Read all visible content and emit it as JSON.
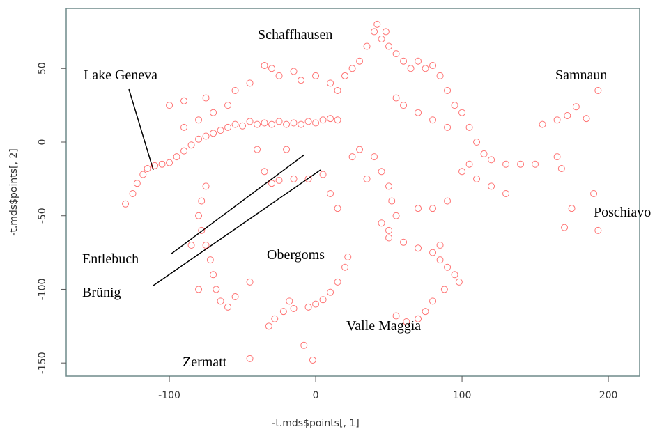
{
  "chart_data": {
    "type": "scatter",
    "xlabel": "-t.mds$points[, 1]",
    "ylabel": "-t.mds$points[, 2]",
    "xlim": [
      -170.5,
      221.4
    ],
    "ylim": [
      -158.9,
      90.8
    ],
    "xticks": [
      -100,
      0,
      100,
      200
    ],
    "yticks": [
      -150,
      -100,
      -50,
      0,
      50
    ],
    "color": "#ff0000",
    "annotations": [
      "Schaffhausen",
      "Lake Geneva",
      "Samnaun",
      "Poschiavo",
      "Entlebuch",
      "Obergoms",
      "Brünig",
      "Valle Maggia",
      "Zermatt"
    ],
    "x": [
      -130,
      -125,
      -122,
      -118,
      -115,
      -110,
      -105,
      -100,
      -95,
      -90,
      -85,
      -80,
      -75,
      -70,
      -65,
      -60,
      -55,
      -50,
      -45,
      -40,
      -35,
      -30,
      -25,
      -20,
      -15,
      -10,
      -5,
      0,
      5,
      10,
      15,
      -90,
      -80,
      -70,
      -60,
      -100,
      -90,
      -75,
      -55,
      -45,
      -35,
      -30,
      -25,
      -15,
      -10,
      0,
      10,
      15,
      20,
      25,
      30,
      35,
      40,
      42,
      45,
      48,
      50,
      55,
      60,
      65,
      70,
      75,
      80,
      85,
      90,
      95,
      100,
      105,
      110,
      115,
      120,
      130,
      140,
      150,
      105,
      55,
      60,
      70,
      80,
      90,
      100,
      110,
      120,
      130,
      90,
      80,
      70,
      50,
      60,
      70,
      80,
      85,
      90,
      95,
      88,
      80,
      75,
      70,
      62,
      55,
      85,
      98,
      40,
      45,
      50,
      52,
      55,
      45,
      30,
      25,
      35,
      50,
      22,
      20,
      15,
      10,
      5,
      0,
      -5,
      -15,
      -22,
      -28,
      -32,
      -18,
      -75,
      -78,
      -80,
      -78,
      -75,
      -72,
      -70,
      -68,
      -65,
      -60,
      -55,
      -45,
      -80,
      -85,
      -35,
      -30,
      -25,
      -15,
      -5,
      5,
      10,
      15,
      -40,
      -20,
      155,
      165,
      172,
      178,
      185,
      193,
      165,
      168,
      190,
      175,
      170,
      193,
      -45,
      -8,
      -2
    ],
    "y": [
      -42,
      -35,
      -28,
      -22,
      -18,
      -16,
      -15,
      -14,
      -10,
      -6,
      -2,
      2,
      4,
      6,
      8,
      10,
      12,
      11,
      14,
      12,
      13,
      12,
      14,
      12,
      13,
      12,
      14,
      13,
      15,
      16,
      15,
      10,
      15,
      20,
      25,
      25,
      28,
      30,
      35,
      40,
      52,
      50,
      45,
      48,
      42,
      45,
      40,
      35,
      45,
      50,
      55,
      65,
      75,
      80,
      70,
      75,
      65,
      60,
      55,
      50,
      55,
      50,
      52,
      45,
      35,
      25,
      20,
      10,
      0,
      -8,
      -12,
      -15,
      -15,
      -15,
      -15,
      30,
      25,
      20,
      15,
      10,
      -20,
      -25,
      -30,
      -35,
      -40,
      -45,
      -45,
      -65,
      -68,
      -72,
      -75,
      -80,
      -85,
      -90,
      -100,
      -108,
      -115,
      -120,
      -122,
      -118,
      -70,
      -95,
      -10,
      -20,
      -30,
      -40,
      -50,
      -55,
      -5,
      -10,
      -25,
      -60,
      -78,
      -85,
      -95,
      -102,
      -107,
      -110,
      -112,
      -113,
      -115,
      -120,
      -125,
      -108,
      -30,
      -40,
      -50,
      -60,
      -70,
      -80,
      -90,
      -100,
      -108,
      -112,
      -105,
      -95,
      -100,
      -70,
      -20,
      -28,
      -26,
      -25,
      -25,
      -22,
      -35,
      -45,
      -5,
      -5,
      12,
      15,
      18,
      24,
      16,
      35,
      -10,
      -18,
      -35,
      -45,
      -58,
      -60,
      -147,
      -138,
      -148
    ]
  }
}
